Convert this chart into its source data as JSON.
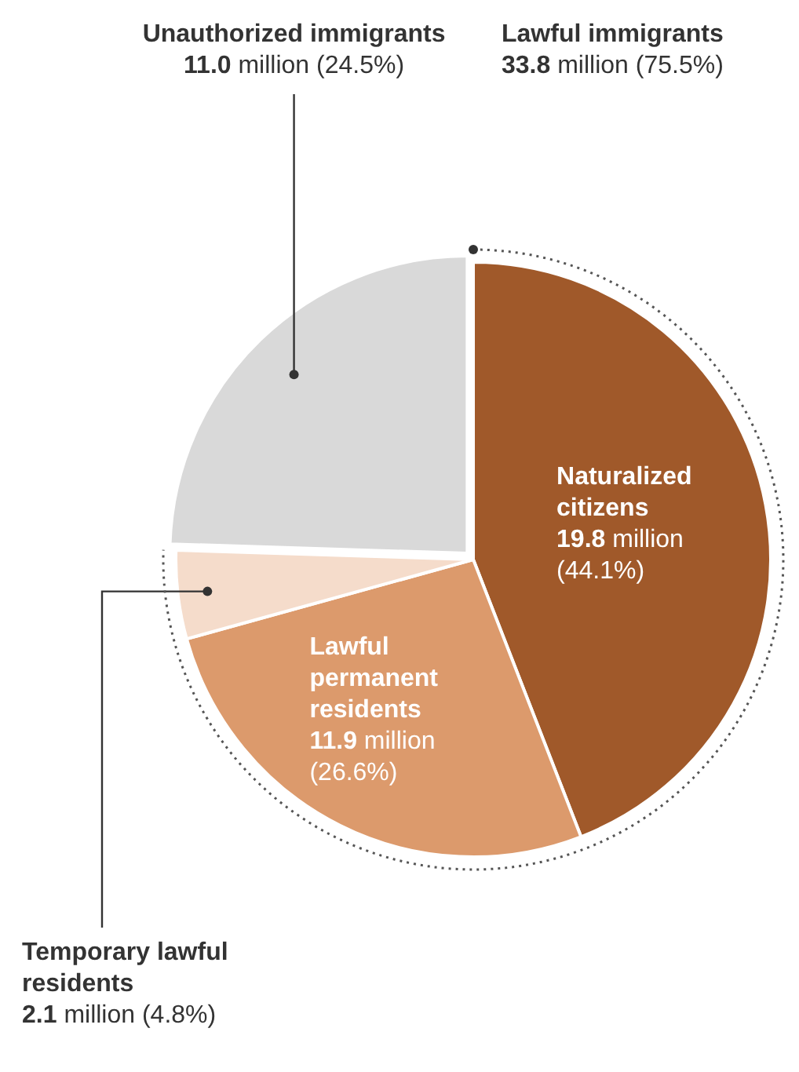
{
  "chart_data": {
    "type": "pie",
    "categories": [
      "Naturalized citizens",
      "Lawful permanent residents",
      "Temporary lawful residents",
      "Unauthorized immigrants"
    ],
    "values": [
      44.1,
      26.6,
      4.8,
      24.5
    ],
    "colors": [
      "#a0592a",
      "#dc9a6c",
      "#f5dccb",
      "#d9d9d9"
    ],
    "value_labels": [
      "19.8 million (44.1%)",
      "11.9 million (26.6%)",
      "2.1 million (4.8%)",
      "11.0 million (24.5%)"
    ],
    "annotations": [
      "Lawful immigrants",
      "33.8 million (75.5%)"
    ],
    "legend": false
  }
}
